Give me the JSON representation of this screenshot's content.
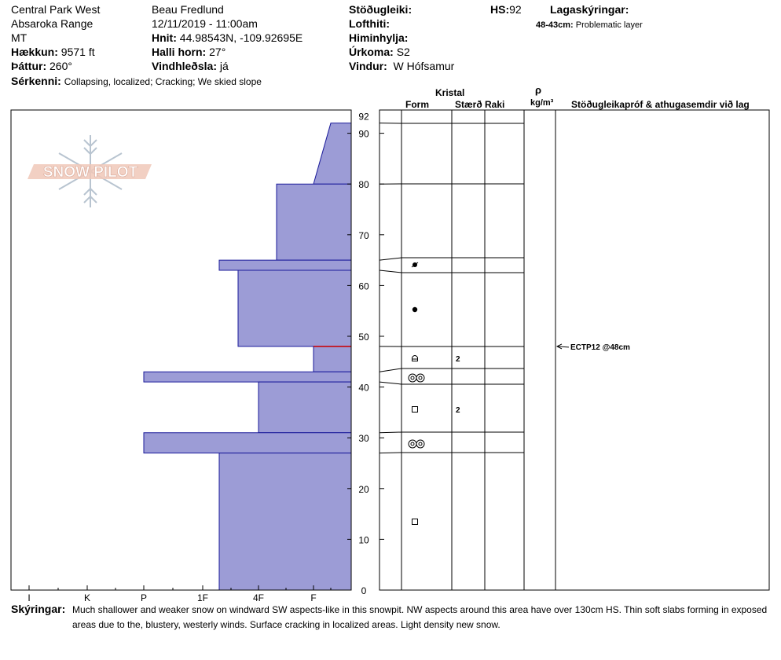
{
  "header": {
    "location": "Central Park West",
    "range": "Absaroka Range",
    "state": "MT",
    "elevation_label": "Hækkun:",
    "elevation_value": "9571 ft",
    "aspect_label": "Þáttur:",
    "aspect_value": "260°",
    "features_label": "Sérkenni:",
    "features_value": "Collapsing, localized;  Cracking;  We skied slope",
    "observer": "Beau  Fredlund",
    "datetime": "12/11/2019 - 11:00am",
    "coords_label": "Hnit:",
    "coords_value": "44.98543N, -109.92695E",
    "slope_label": "Halli horn:",
    "slope_value": "27°",
    "wind_loading_label": "Vindhleðsla:",
    "wind_loading_value": "já",
    "stability_label": "Stöðugleiki:",
    "air_temp_label": "Lofthiti:",
    "sky_label": "Himinhylja:",
    "precip_label": "Úrkoma:",
    "precip_value": "S2",
    "wind_label": "Vindur:",
    "wind_value": "W Hófsamur",
    "hs_label": "HS:",
    "hs_value": "92",
    "layers_label": "Lagaskýringar:",
    "layer_note_range": "48-43cm:",
    "layer_note_text": "Problematic layer"
  },
  "logo_text": "SNOW PILOT",
  "columns": {
    "crystal": "Kristal",
    "form": "Form",
    "size": "Stærð",
    "moisture": "Raki",
    "rho": "ρ",
    "density_unit": "kg/m³",
    "tests": "Stöðugleikapróf & athugasemdir við lag"
  },
  "comments_label": "Skýringar:",
  "comments_text": "Much shallower and weaker snow on windward SW aspects-like in this snowpit.  NW aspects around this area have over 130cm HS.  Thin soft slabs forming in exposed areas due to the, blustery, westerly winds.  Surface cracking in localized areas.  Light density new snow.",
  "chart_data": {
    "type": "snow-profile",
    "height_ticks": [
      0,
      10,
      20,
      30,
      40,
      50,
      60,
      70,
      80,
      90
    ],
    "hs": 92,
    "hardness_scale": [
      "I",
      "K",
      "P",
      "1F",
      "4F",
      "F"
    ],
    "layers": [
      {
        "top": 92,
        "bottom": 80,
        "hardness_top": "F-",
        "hardness_bottom": "F",
        "form": "",
        "size": ""
      },
      {
        "top": 80,
        "bottom": 65,
        "hardness": "4F+",
        "form": "",
        "size": ""
      },
      {
        "top": 65,
        "bottom": 63,
        "hardness": "1F+",
        "form": "decomposing-fragments",
        "size": ""
      },
      {
        "top": 63,
        "bottom": 48,
        "hardness": "1F+ / 4F-",
        "form": "graupel-round",
        "size": ""
      },
      {
        "top": 48,
        "bottom": 43,
        "hardness": "F",
        "form": "facets-depth-hoar",
        "size": "2"
      },
      {
        "top": 43,
        "bottom": 41,
        "hardness": "P",
        "form": "rounds-double",
        "size": ""
      },
      {
        "top": 41,
        "bottom": 31,
        "hardness": "4F",
        "form": "facets",
        "size": "2"
      },
      {
        "top": 31,
        "bottom": 27,
        "hardness": "P",
        "form": "rounds-double",
        "size": ""
      },
      {
        "top": 27,
        "bottom": 0,
        "hardness": "1F+",
        "form": "facets",
        "size": ""
      }
    ],
    "tests": [
      {
        "depth": 48,
        "label": "ECTP12 @48cm"
      }
    ],
    "problem_layer": 48,
    "labels": {
      "hs_top": "92",
      "size_1": "2",
      "size_2": "2"
    }
  }
}
